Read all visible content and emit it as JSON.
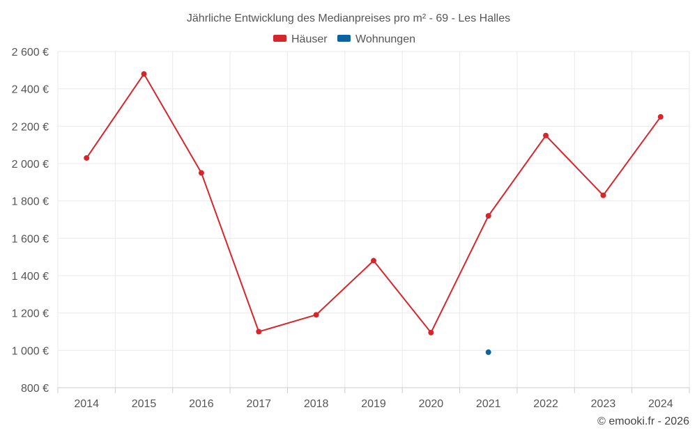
{
  "chart_data": {
    "type": "line",
    "title": "Jährliche Entwicklung des Medianpreises pro m² - 69 - Les Halles",
    "xlabel": "",
    "ylabel": "",
    "categories": [
      "2014",
      "2015",
      "2016",
      "2017",
      "2018",
      "2019",
      "2020",
      "2021",
      "2022",
      "2023",
      "2024"
    ],
    "ylim": [
      800,
      2600
    ],
    "yticks": [
      800,
      1000,
      1200,
      1400,
      1600,
      1800,
      2000,
      2200,
      2400,
      2600
    ],
    "ytick_labels": [
      "800 €",
      "1 000 €",
      "1 200 €",
      "1 400 €",
      "1 600 €",
      "1 800 €",
      "2 000 €",
      "2 200 €",
      "2 400 €",
      "2 600 €"
    ],
    "grid": true,
    "legend_position": "top-center",
    "series": [
      {
        "name": "Häuser",
        "color": "#d7262b",
        "values": [
          2030,
          2480,
          1950,
          1100,
          1190,
          1480,
          1095,
          1720,
          2150,
          1830,
          2250
        ]
      },
      {
        "name": "Wohnungen",
        "color": "#0a64a0",
        "values": [
          null,
          null,
          null,
          null,
          null,
          null,
          null,
          990,
          null,
          null,
          null
        ]
      }
    ],
    "credit": "© emooki.fr - 2026"
  }
}
